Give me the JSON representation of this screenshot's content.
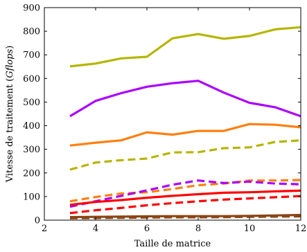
{
  "chart_data": {
    "type": "line",
    "xlabel": "Taille de matrice",
    "ylabel_prefix": "Vitesse de traitement (",
    "ylabel_unit": "Gflops",
    "ylabel_suffix": ")",
    "xlim": [
      2,
      12
    ],
    "ylim": [
      0,
      900
    ],
    "xticks": [
      2,
      4,
      6,
      8,
      10,
      12
    ],
    "yticks": [
      0,
      100,
      200,
      300,
      400,
      500,
      600,
      700,
      800,
      900
    ],
    "grid": false,
    "x": [
      3,
      4,
      5,
      6,
      7,
      8,
      9,
      10,
      11,
      12
    ],
    "series": [
      {
        "color": "#b5b500",
        "dash": "solid",
        "values": [
          651,
          663,
          685,
          692,
          770,
          788,
          768,
          780,
          808,
          817
        ]
      },
      {
        "color": "#aa00ff",
        "dash": "solid",
        "values": [
          440,
          505,
          538,
          565,
          580,
          590,
          540,
          497,
          478,
          440
        ]
      },
      {
        "color": "#ff7f0e",
        "dash": "solid",
        "values": [
          316,
          328,
          338,
          372,
          362,
          378,
          378,
          407,
          404,
          393
        ]
      },
      {
        "color": "#b5b500",
        "dash": "dashed",
        "values": [
          214,
          244,
          254,
          261,
          287,
          288,
          305,
          308,
          331,
          338
        ]
      },
      {
        "color": "#ff7f0e",
        "dash": "dashed",
        "values": [
          80,
          98,
          113,
          118,
          132,
          148,
          155,
          168,
          168,
          170
        ]
      },
      {
        "color": "#aa00ff",
        "dash": "dashed",
        "values": [
          57,
          80,
          103,
          126,
          150,
          168,
          157,
          163,
          155,
          152
        ]
      },
      {
        "color": "#ff0000",
        "dash": "solid",
        "values": [
          65,
          77,
          85,
          95,
          103,
          110,
          116,
          118,
          122,
          125
        ]
      },
      {
        "color": "#ff0000",
        "dash": "dashed",
        "values": [
          30,
          42,
          52,
          63,
          72,
          80,
          87,
          92,
          97,
          102
        ]
      },
      {
        "color": "#8b4513",
        "dash": "solid",
        "values": [
          13,
          14,
          15,
          16,
          17,
          17,
          17,
          18,
          20,
          22
        ]
      },
      {
        "color": "#8b4513",
        "dash": "dashed",
        "values": [
          8,
          9,
          10,
          11,
          12,
          12,
          13,
          14,
          15,
          16
        ]
      }
    ]
  }
}
